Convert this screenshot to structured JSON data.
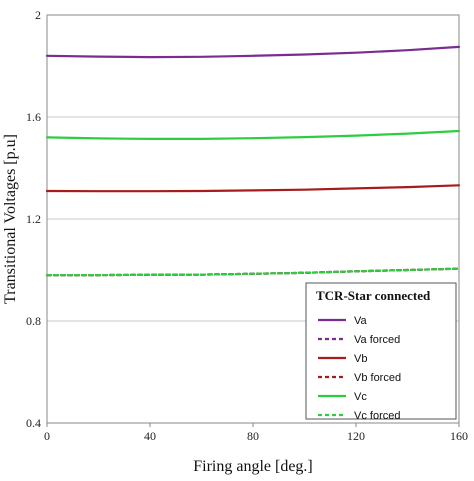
{
  "chart_data": {
    "type": "line",
    "xlabel": "Firing angle [deg.]",
    "ylabel": "Transitional Voltages [p.u]",
    "xlim": [
      0,
      160
    ],
    "ylim": [
      0.4,
      2.0
    ],
    "x_ticks": [
      "0",
      "40",
      "80",
      "120",
      "160"
    ],
    "y_ticks": [
      "0.4",
      "0.8",
      "1.2",
      "1.6",
      "2"
    ],
    "grid": "horizontal",
    "legend_title": "TCR-Star connected",
    "legend_position": "bottom-right",
    "x": [
      0,
      20,
      40,
      60,
      80,
      100,
      120,
      140,
      160
    ],
    "series": [
      {
        "name": "Va",
        "color": "#7b2c91",
        "style": "solid",
        "values": [
          1.84,
          1.837,
          1.835,
          1.836,
          1.84,
          1.845,
          1.852,
          1.862,
          1.875
        ]
      },
      {
        "name": "Va forced",
        "color": "#7b2c91",
        "style": "dashed",
        "values": [
          0.98,
          0.98,
          0.981,
          0.982,
          0.985,
          0.989,
          0.995,
          1.0,
          1.005
        ]
      },
      {
        "name": "Vb",
        "color": "#a61c1c",
        "style": "solid",
        "values": [
          1.31,
          1.309,
          1.309,
          1.31,
          1.312,
          1.315,
          1.32,
          1.325,
          1.332
        ]
      },
      {
        "name": "Vb forced",
        "color": "#a61c1c",
        "style": "dashed",
        "values": [
          0.98,
          0.98,
          0.981,
          0.982,
          0.985,
          0.989,
          0.995,
          1.0,
          1.005
        ]
      },
      {
        "name": "Vc",
        "color": "#2ecc40",
        "style": "solid",
        "values": [
          1.52,
          1.516,
          1.514,
          1.514,
          1.517,
          1.521,
          1.527,
          1.535,
          1.545
        ]
      },
      {
        "name": "Vc forced",
        "color": "#2ecc40",
        "style": "dashed",
        "values": [
          0.98,
          0.98,
          0.981,
          0.982,
          0.985,
          0.989,
          0.995,
          1.0,
          1.005
        ]
      }
    ]
  }
}
